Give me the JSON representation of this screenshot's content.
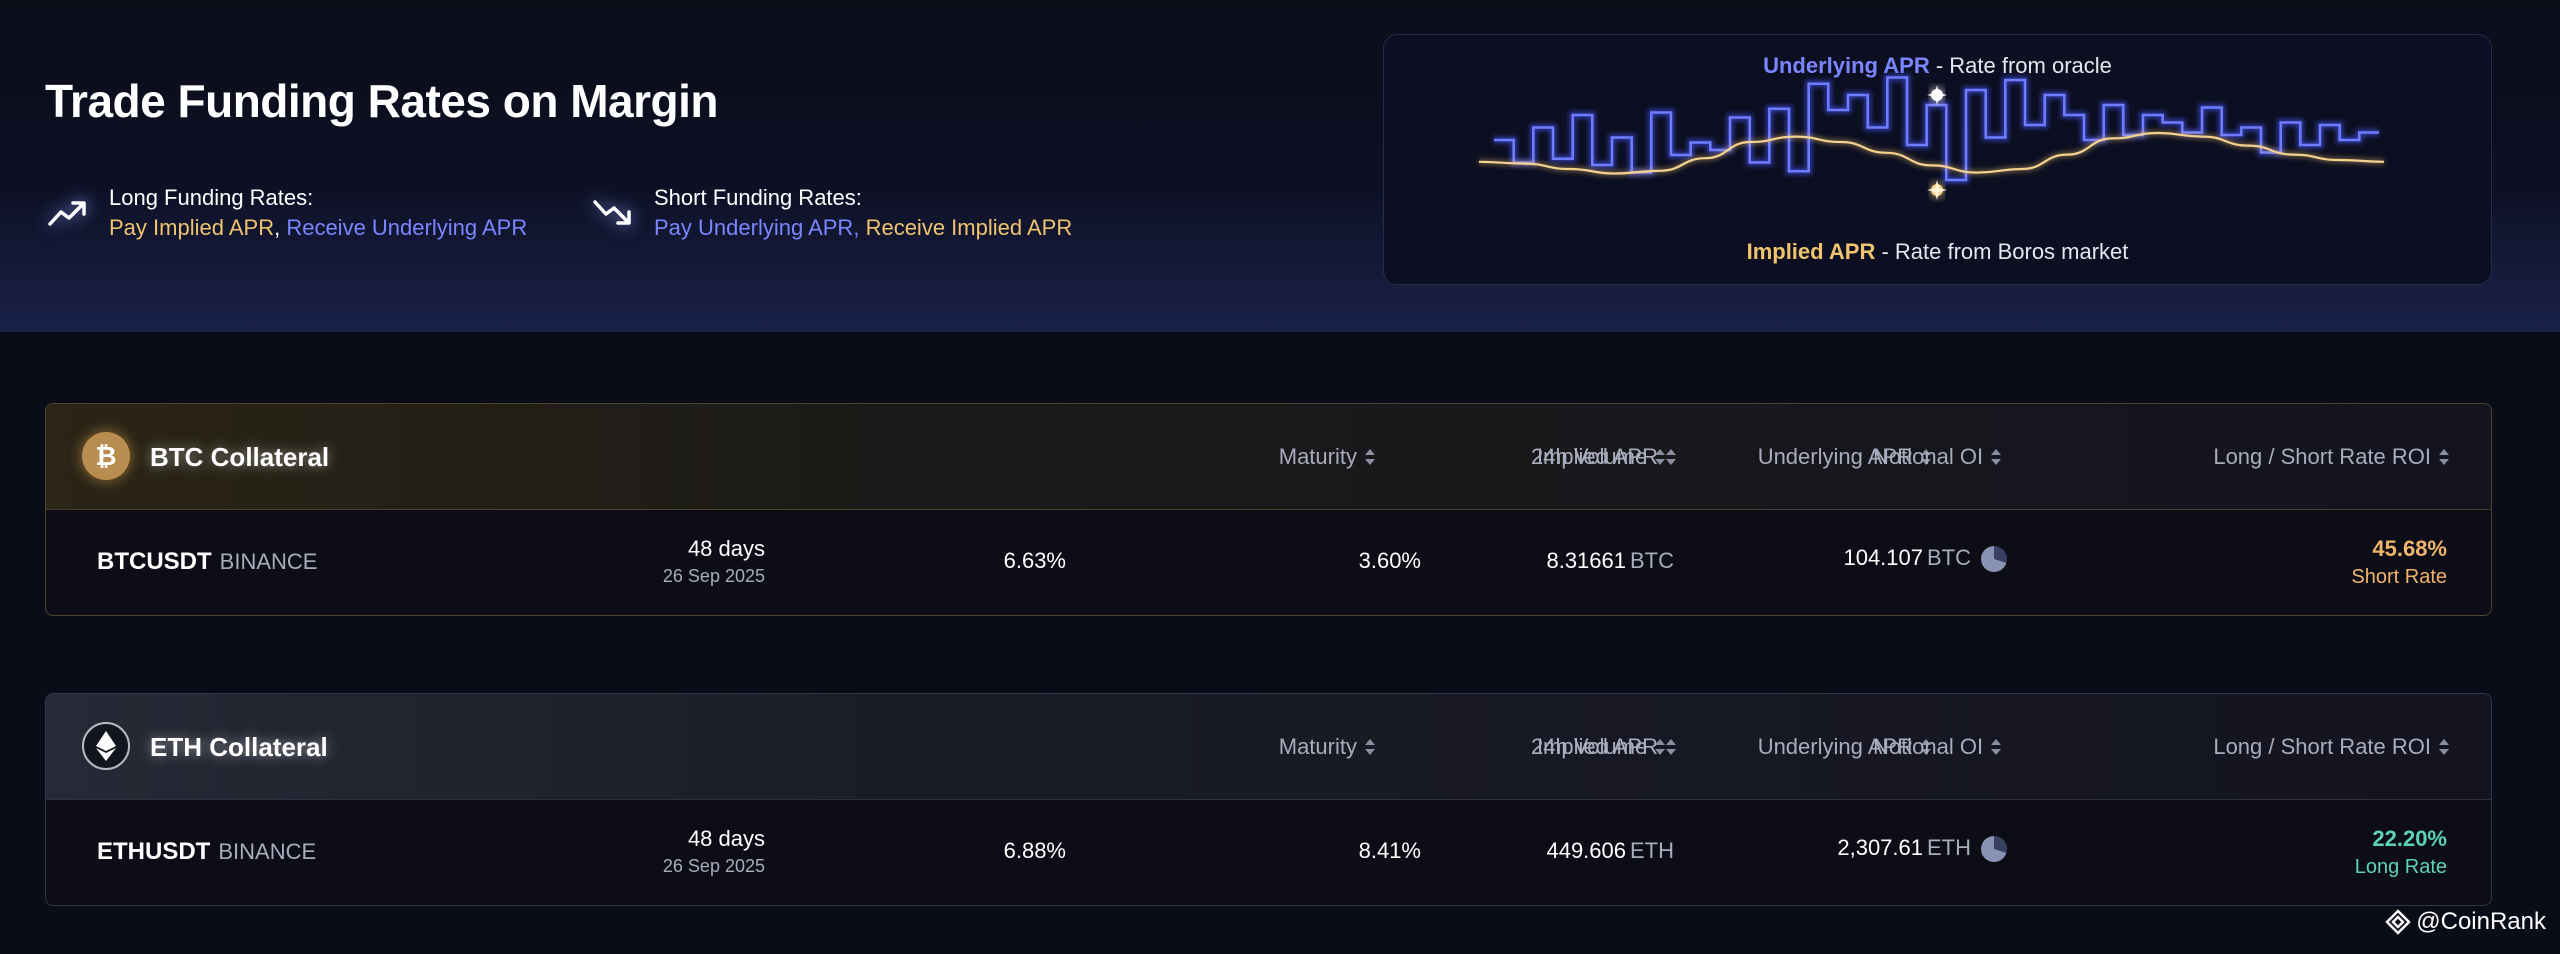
{
  "hero": {
    "title": "Trade Funding Rates on Margin",
    "long": {
      "title": "Long Funding Rates:",
      "pay": "Pay Implied APR",
      "sep": ",",
      "receive": "Receive Underlying APR",
      "icon": "trending-up-icon"
    },
    "short": {
      "title": "Short Funding Rates:",
      "pay": "Pay Underlying APR",
      "sep": ",",
      "receive": "Receive Implied APR",
      "icon": "trending-down-icon"
    },
    "chart": {
      "underlying_label": "Underlying APR",
      "underlying_desc": " - Rate from oracle",
      "implied_label": "Implied APR",
      "implied_desc": " - Rate from Boros market",
      "underlying_steps": [
        60,
        42,
        70,
        45,
        80,
        40,
        62,
        34,
        82,
        48,
        58,
        52,
        78,
        42,
        85,
        35,
        105,
        84,
        96,
        70,
        110,
        56,
        88,
        28,
        100,
        62,
        108,
        72,
        96,
        80,
        60,
        88,
        64,
        80,
        74,
        66,
        86,
        64,
        70,
        50,
        74,
        56,
        72,
        60,
        66
      ],
      "implied_curve": [
        48,
        46,
        40,
        35,
        38,
        52,
        70,
        76,
        70,
        58,
        44,
        36,
        40,
        56,
        74,
        80,
        76,
        66,
        56,
        50,
        48
      ]
    },
    "colors": {
      "gold": "#f0c36f",
      "blue": "#7a86ff"
    }
  },
  "columns": {
    "maturity": "Maturity",
    "implied": "Implied APR",
    "underlying": "Underlying APR",
    "volume": "24h Volume",
    "oi": "Notional OI",
    "roi": "Long / Short Rate ROI"
  },
  "markets": [
    {
      "collateral": "BTC Collateral",
      "coin_icon": "bitcoin-icon",
      "symbol": "BTCUSDT",
      "exchange": "BINANCE",
      "maturity_days": "48 days",
      "maturity_date": "26 Sep 2025",
      "implied_apr": "6.63%",
      "underlying_apr": "3.60%",
      "volume": "8.31661",
      "volume_unit": "BTC",
      "oi": "104.107",
      "oi_unit": "BTC",
      "roi": "45.68%",
      "roi_label": "Short Rate",
      "roi_color": "#f0b46a"
    },
    {
      "collateral": "ETH Collateral",
      "coin_icon": "ethereum-icon",
      "symbol": "ETHUSDT",
      "exchange": "BINANCE",
      "maturity_days": "48 days",
      "maturity_date": "26 Sep 2025",
      "implied_apr": "6.88%",
      "underlying_apr": "8.41%",
      "volume": "449.606",
      "volume_unit": "ETH",
      "oi": "2,307.61",
      "oi_unit": "ETH",
      "roi": "22.20%",
      "roi_label": "Long Rate",
      "roi_color": "#5ed3b4"
    }
  ],
  "watermark": "@CoinRank"
}
